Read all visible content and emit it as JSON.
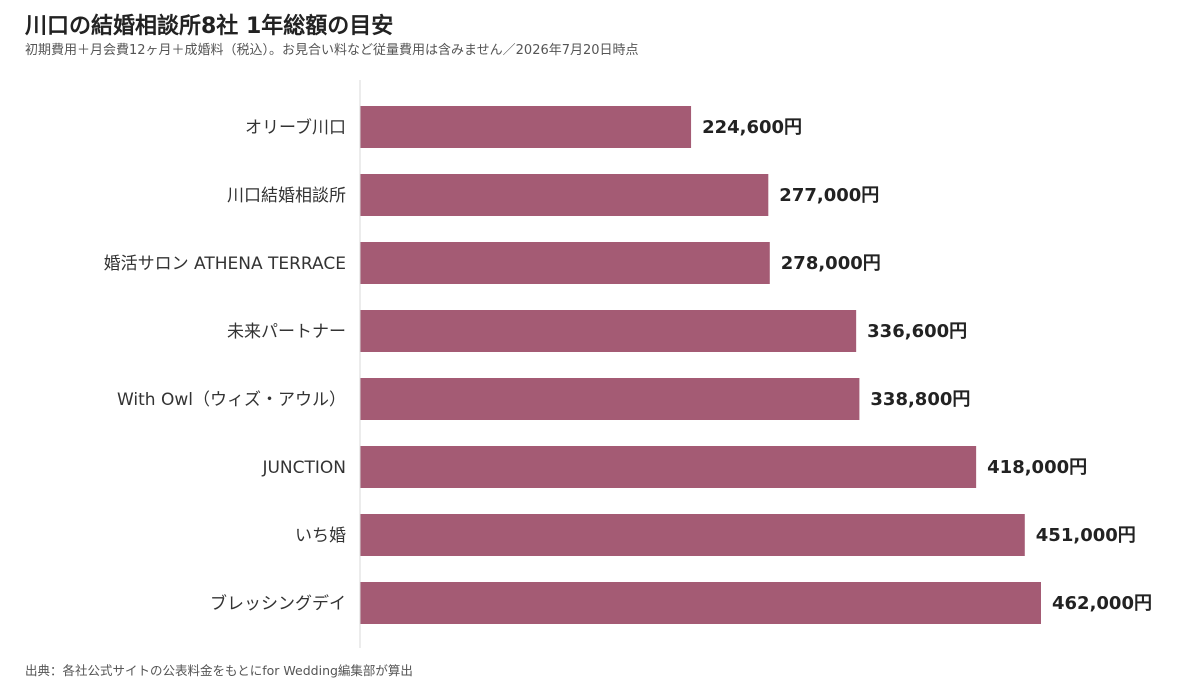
{
  "header": {
    "title": "川口の結婚相談所8社 1年総額の目安",
    "subtitle": "初期費用＋月会費12ヶ月＋成婚料（税込）。お見合い料など従量費用は含みません／2026年7月20日時点"
  },
  "footer": {
    "source": "出典：各社公式サイトの公表料金をもとにfor Wedding編集部が算出"
  },
  "colors": {
    "bar": "#a45b74",
    "axis": "#d9d9d9"
  },
  "chart_data": {
    "type": "bar",
    "orientation": "horizontal",
    "categories": [
      "オリーブ川口",
      "川口結婚相談所",
      "婚活サロン ATHENA TERRACE",
      "未来パートナー",
      "With Owl（ウィズ・アウル）",
      "JUNCTION",
      "いち婚",
      "ブレッシングデイ"
    ],
    "values": [
      224600,
      277000,
      278000,
      336600,
      338800,
      418000,
      451000,
      462000
    ],
    "value_labels": [
      "224,600円",
      "277,000円",
      "278,000円",
      "336,600円",
      "338,800円",
      "418,000円",
      "451,000円",
      "462,000円"
    ],
    "xlim": [
      0,
      462000
    ],
    "grid": false,
    "legend": "none"
  }
}
